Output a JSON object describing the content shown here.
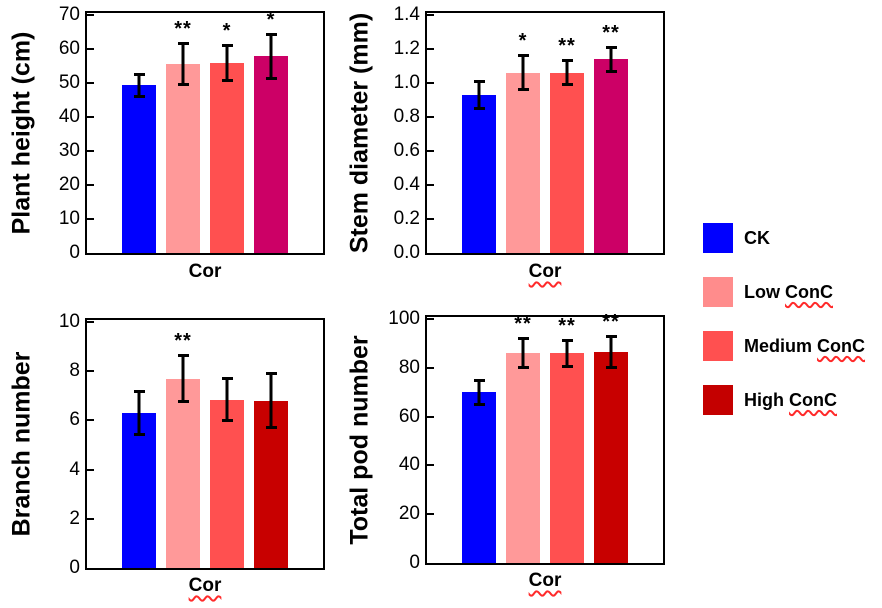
{
  "figure": {
    "background": "#FFFFFF",
    "panel_count": 4
  },
  "colors": {
    "ck_blue": "#0000FF",
    "low_conc_pink": "#FF9999",
    "medium_conc_red": "#FF5050",
    "high_conc_crimson": "#CC0066",
    "high_conc_darkred": "#C80000",
    "axis_black": "#000000",
    "spellcheck_red": "#FF2A2A"
  },
  "legend": {
    "position": "right-middle",
    "items": [
      {
        "label": "CK",
        "prefix": "CK",
        "squiggle_word": "",
        "color": "#0000FF"
      },
      {
        "label": "Low ConC",
        "prefix": "Low ",
        "squiggle_word": "ConC",
        "color": "#FF8C8C"
      },
      {
        "label": "Medium ConC",
        "prefix": "Medium ",
        "squiggle_word": "ConC",
        "color": "#FF5050"
      },
      {
        "label": "High ConC",
        "prefix": "High ",
        "squiggle_word": "ConC",
        "color": "#C40000"
      }
    ]
  },
  "chart_data": [
    {
      "type": "bar",
      "title": "",
      "ylabel": "Plant height (cm)",
      "xlabel": "Cor",
      "xlabel_spellcheck_squiggle": false,
      "categories": [
        "CK",
        "Low ConC",
        "Medium ConC",
        "High ConC"
      ],
      "values": [
        49.3,
        55.6,
        55.9,
        57.8
      ],
      "errors": [
        3.7,
        6.6,
        5.7,
        6.9
      ],
      "significance": [
        "",
        "**",
        "*",
        "*"
      ],
      "bar_colors": [
        "#0000FF",
        "#FF9999",
        "#FF5050",
        "#CC0066"
      ],
      "ylim": [
        0,
        70
      ],
      "ytick_step": 10,
      "ytick_decimals": 0,
      "grid": false,
      "frame": "full-box"
    },
    {
      "type": "bar",
      "title": "",
      "ylabel": "Stem diameter (mm)",
      "xlabel": "Cor",
      "xlabel_spellcheck_squiggle": true,
      "categories": [
        "CK",
        "Low ConC",
        "Medium ConC",
        "High ConC"
      ],
      "values": [
        0.93,
        1.06,
        1.06,
        1.14
      ],
      "errors": [
        0.09,
        0.11,
        0.08,
        0.08
      ],
      "significance": [
        "",
        "*",
        "**",
        "**"
      ],
      "bar_colors": [
        "#0000FF",
        "#FF9999",
        "#FF5050",
        "#CC0066"
      ],
      "ylim": [
        0,
        1.4
      ],
      "ytick_step": 0.2,
      "ytick_decimals": 1,
      "grid": false,
      "frame": "full-box"
    },
    {
      "type": "bar",
      "title": "",
      "ylabel": "Branch number",
      "xlabel": "Cor",
      "xlabel_spellcheck_squiggle": true,
      "categories": [
        "CK",
        "Low ConC",
        "Medium ConC",
        "High ConC"
      ],
      "values": [
        6.3,
        7.7,
        6.85,
        6.8
      ],
      "errors": [
        0.95,
        1.0,
        0.9,
        1.15
      ],
      "significance": [
        "",
        "**",
        "",
        ""
      ],
      "bar_colors": [
        "#0000FF",
        "#FF9999",
        "#FF5050",
        "#C80000"
      ],
      "ylim": [
        0,
        10
      ],
      "ytick_step": 2,
      "ytick_decimals": 0,
      "grid": false,
      "frame": "full-box"
    },
    {
      "type": "bar",
      "title": "",
      "ylabel": "Total pod number",
      "xlabel": "Cor",
      "xlabel_spellcheck_squiggle": true,
      "categories": [
        "CK",
        "Low ConC",
        "Medium ConC",
        "High ConC"
      ],
      "values": [
        70,
        86,
        86,
        86.5
      ],
      "errors": [
        5.5,
        6.5,
        6,
        7
      ],
      "significance": [
        "",
        "**",
        "**",
        "**"
      ],
      "bar_colors": [
        "#0000FF",
        "#FF9999",
        "#FF5050",
        "#C80000"
      ],
      "ylim": [
        0,
        100
      ],
      "ytick_step": 20,
      "ytick_decimals": 0,
      "grid": false,
      "frame": "full-box"
    }
  ]
}
